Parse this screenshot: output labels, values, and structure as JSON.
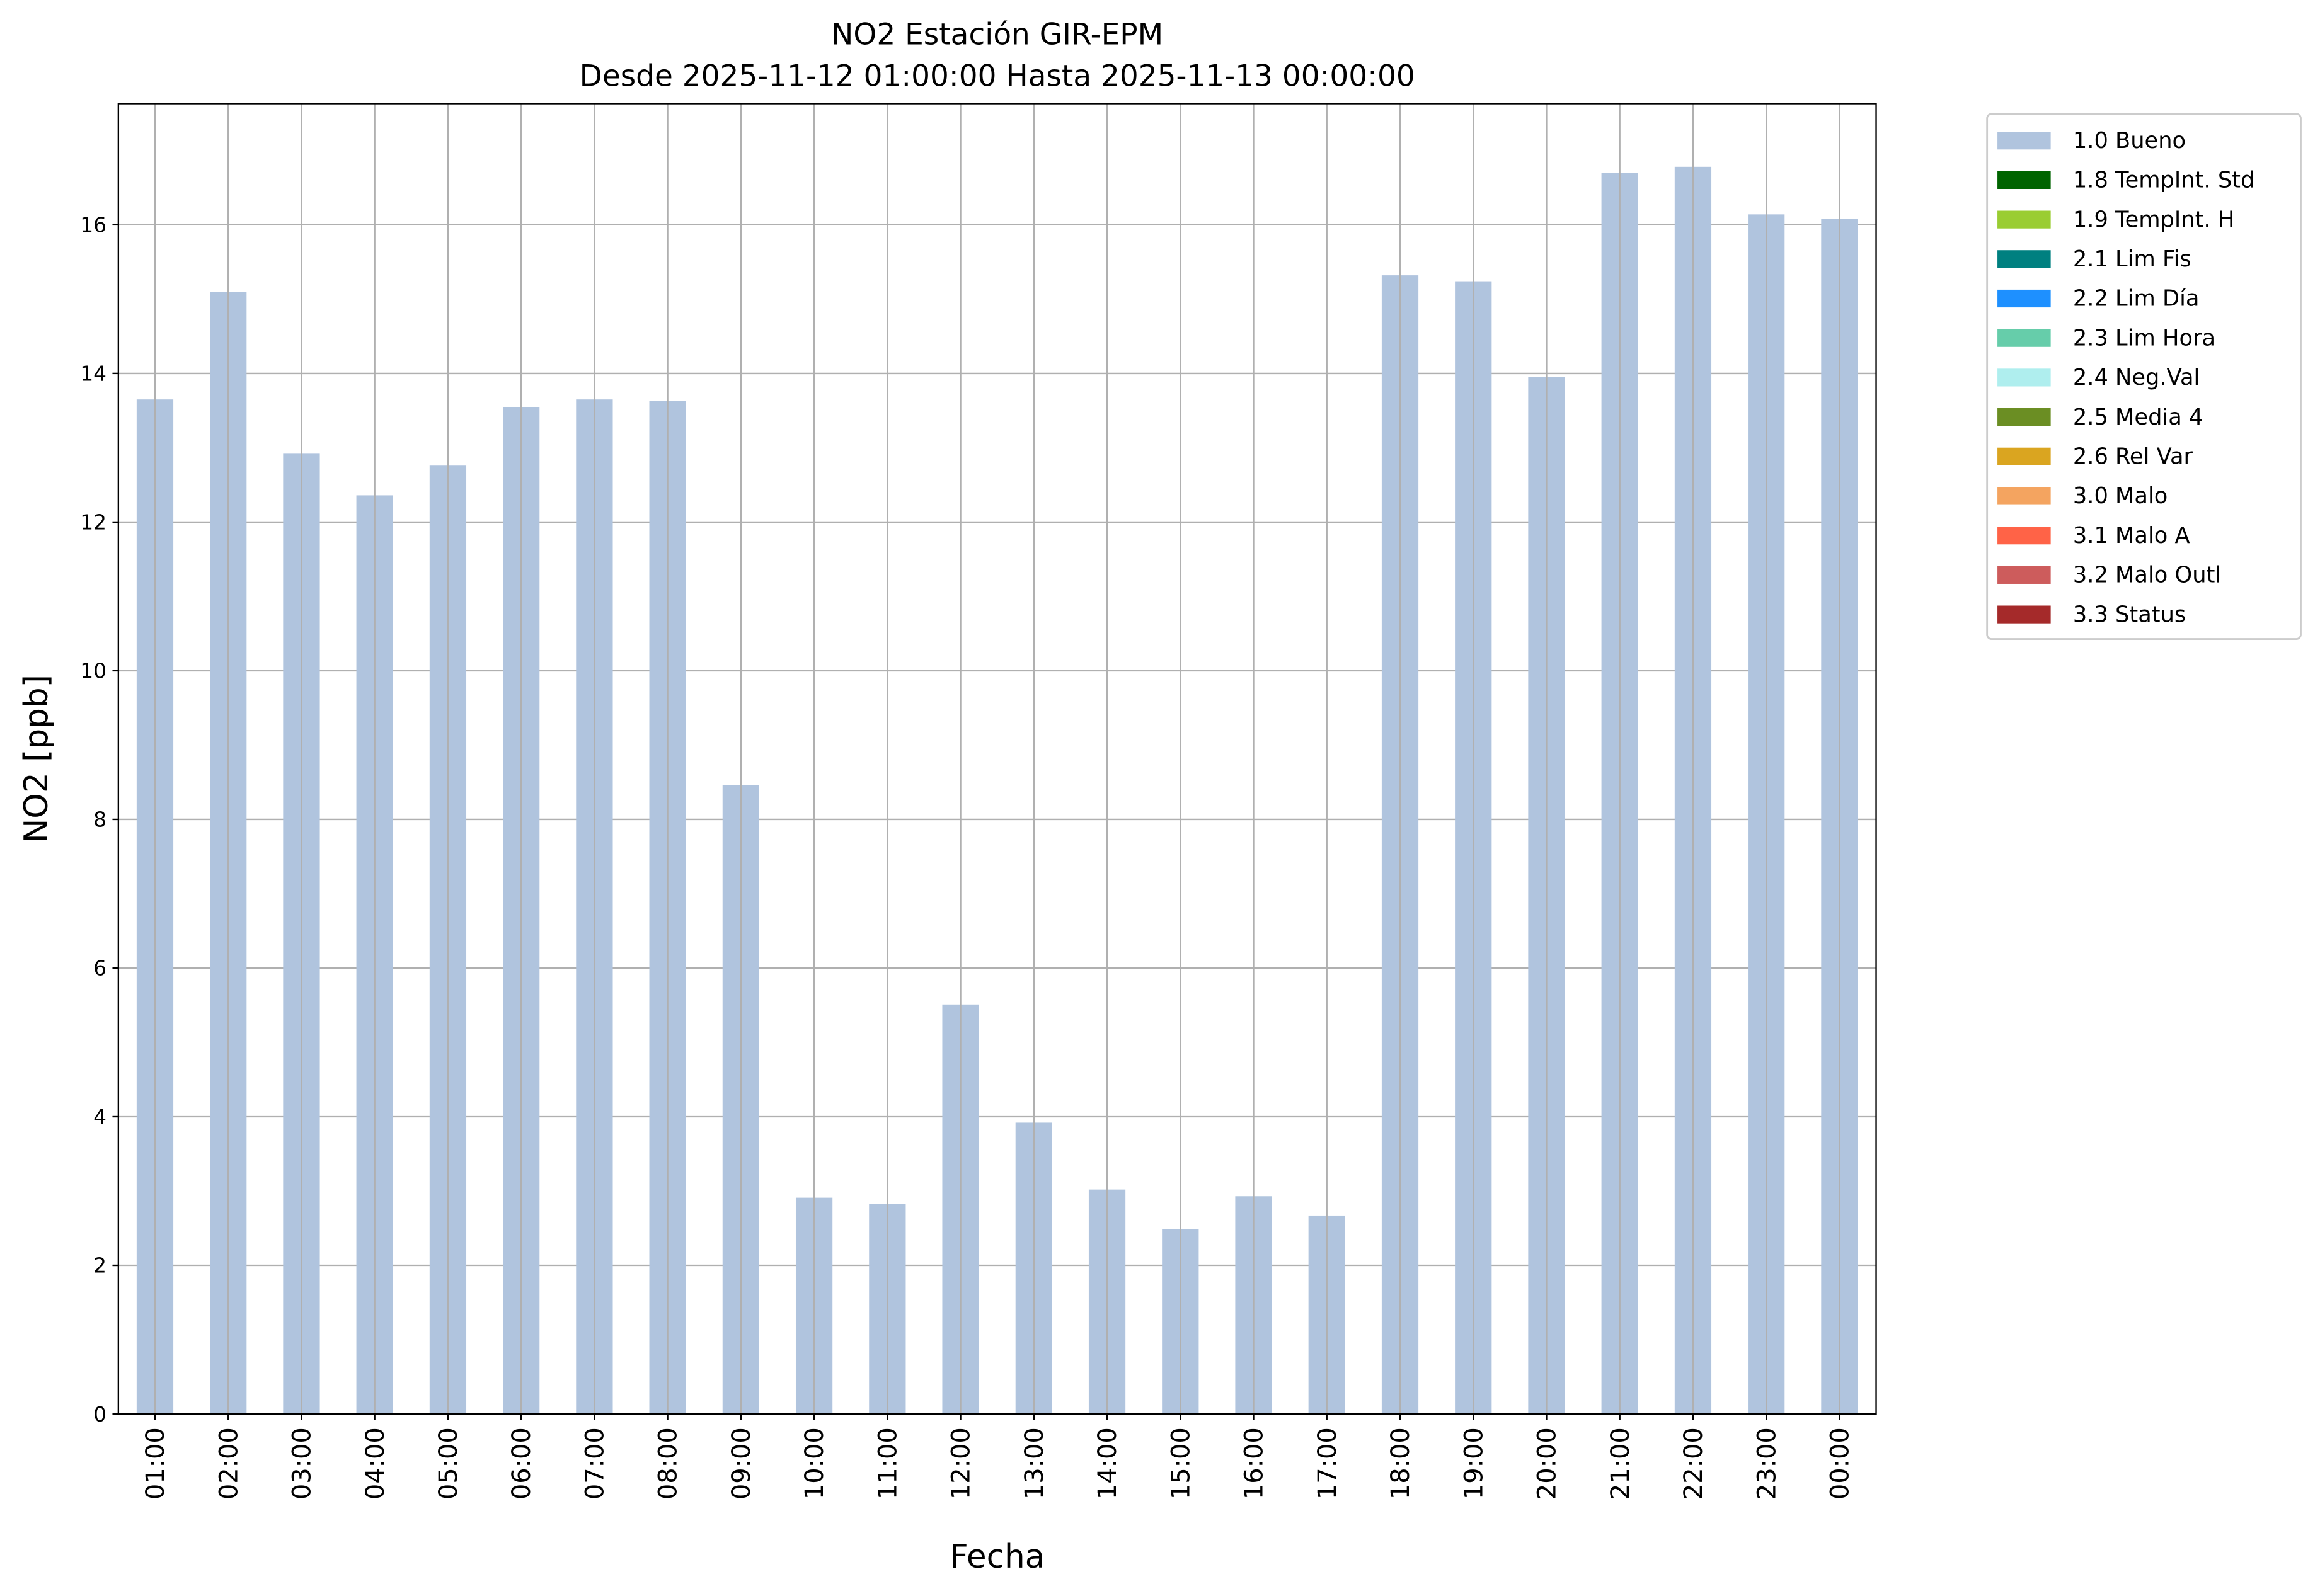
{
  "chart_data": {
    "type": "bar",
    "title": "NO2 Estación GIR-EPM",
    "subtitle": "Desde 2025-11-12 01:00:00 Hasta 2025-11-13 00:00:00",
    "xlabel": "Fecha",
    "ylabel": "NO2 [ppb]",
    "ylim": [
      0,
      17.63
    ],
    "yticks": [
      0,
      2,
      4,
      6,
      8,
      10,
      12,
      14,
      16
    ],
    "grid": true,
    "legend_position": "outside-top-right",
    "categories": [
      "01:00",
      "02:00",
      "03:00",
      "04:00",
      "05:00",
      "06:00",
      "07:00",
      "08:00",
      "09:00",
      "10:00",
      "11:00",
      "12:00",
      "13:00",
      "14:00",
      "15:00",
      "16:00",
      "17:00",
      "18:00",
      "19:00",
      "20:00",
      "21:00",
      "22:00",
      "23:00",
      "00:00"
    ],
    "series": [
      {
        "name": "1.0 Bueno",
        "color": "#B0C4DE",
        "values": [
          13.65,
          15.1,
          12.92,
          12.36,
          12.76,
          13.55,
          13.65,
          13.63,
          8.46,
          2.91,
          2.83,
          5.51,
          3.92,
          3.02,
          2.49,
          2.93,
          2.67,
          15.32,
          15.24,
          13.95,
          16.7,
          16.78,
          16.14,
          16.08
        ]
      }
    ],
    "legend": [
      {
        "label": "1.0 Bueno",
        "color": "#B0C4DE"
      },
      {
        "label": "1.8 TempInt. Std",
        "color": "#006400"
      },
      {
        "label": "1.9 TempInt. H",
        "color": "#9ACD32"
      },
      {
        "label": "2.1 Lim Fis",
        "color": "#008080"
      },
      {
        "label": "2.2 Lim Día",
        "color": "#1E90FF"
      },
      {
        "label": "2.3 Lim Hora",
        "color": "#66CDAA"
      },
      {
        "label": "2.4 Neg.Val",
        "color": "#AFEEEE"
      },
      {
        "label": "2.5 Media 4",
        "color": "#6B8E23"
      },
      {
        "label": "2.6 Rel Var",
        "color": "#DAA520"
      },
      {
        "label": "3.0 Malo",
        "color": "#F4A460"
      },
      {
        "label": "3.1 Malo A",
        "color": "#FF6347"
      },
      {
        "label": "3.2 Malo Outl",
        "color": "#CD5C5C"
      },
      {
        "label": "3.3 Status",
        "color": "#A52A2A"
      }
    ]
  }
}
